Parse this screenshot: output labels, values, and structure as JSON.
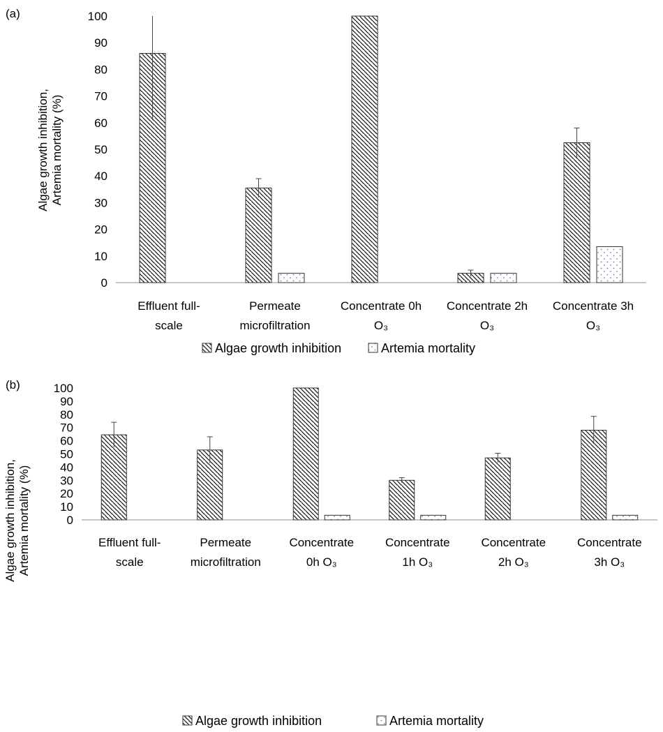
{
  "chart_data": [
    {
      "panel_label": "(a)",
      "type": "bar",
      "ylabel_lines": [
        "Algae growth inhibition,",
        "Artemia mortality (%)"
      ],
      "ylim": [
        0,
        100
      ],
      "yticks": [
        0,
        10,
        20,
        30,
        40,
        50,
        60,
        70,
        80,
        90,
        100
      ],
      "categories": [
        [
          "Effluent full-",
          "scale"
        ],
        [
          "Permeate",
          "microfiltration"
        ],
        [
          "Concentrate 0h",
          "O₃"
        ],
        [
          "Concentrate 2h",
          "O₃"
        ],
        [
          "Concentrate 3h",
          "O₃"
        ]
      ],
      "series": [
        {
          "name": "Algae growth inhibition",
          "pattern": "hatch",
          "values": [
            86,
            35.5,
            100,
            3.5,
            52.5
          ],
          "error": [
            25,
            3.5,
            0,
            1.2,
            5.5
          ]
        },
        {
          "name": "Artemia mortality",
          "pattern": "dots",
          "values": [
            0,
            3.5,
            0,
            3.5,
            13.5
          ],
          "error": [
            0,
            0,
            0,
            0,
            0
          ]
        }
      ],
      "legend_position": "bottom",
      "grid": false
    },
    {
      "panel_label": "(b)",
      "type": "bar",
      "ylabel_lines": [
        "Algae growth inhibition,",
        "Artemia mortality (%)"
      ],
      "ylim": [
        0,
        100
      ],
      "yticks": [
        0,
        10,
        20,
        30,
        40,
        50,
        60,
        70,
        80,
        90,
        100
      ],
      "categories": [
        [
          "Effluent full-",
          "scale"
        ],
        [
          "Permeate",
          "microfiltration"
        ],
        [
          "Concentrate",
          "0h O₃"
        ],
        [
          "Concentrate",
          "1h O₃"
        ],
        [
          "Concentrate",
          "2h O₃"
        ],
        [
          "Concentrate",
          "3h O₃"
        ]
      ],
      "series": [
        {
          "name": "Algae growth inhibition",
          "pattern": "hatch",
          "values": [
            64.5,
            53,
            100,
            30,
            47,
            68
          ],
          "error": [
            9.5,
            10,
            0,
            2,
            3.5,
            10.5
          ]
        },
        {
          "name": "Artemia mortality",
          "pattern": "dots",
          "values": [
            0,
            0,
            3.5,
            3.5,
            0,
            3.5
          ],
          "error": [
            0,
            0,
            0,
            0,
            0,
            0
          ]
        }
      ],
      "legend_position": "bottom",
      "grid": false
    }
  ]
}
